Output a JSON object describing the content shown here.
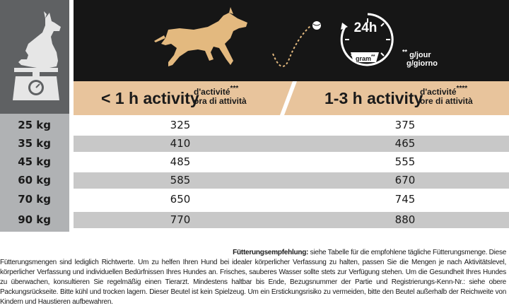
{
  "header": {
    "col1_main": "< 1 h activity",
    "col1_sub_line1": "d'activité",
    "col1_sub_stars": "***",
    "col1_sub_line2": "ora di attività",
    "col2_main": "1-3 h activity",
    "col2_sub_line1": "d'activité",
    "col2_sub_stars": "****",
    "col2_sub_line2": "ore di attività"
  },
  "clock": {
    "hours": "24h",
    "gram": "gram",
    "gram_stars": "**",
    "unit_stars": "**",
    "unit_fr": "g/jour",
    "unit_it": "g/giorno"
  },
  "rows": [
    {
      "weight": "25 kg",
      "v1": "325",
      "v2": "375"
    },
    {
      "weight": "35 kg",
      "v1": "410",
      "v2": "465"
    },
    {
      "weight": "45 kg",
      "v1": "485",
      "v2": "555"
    },
    {
      "weight": "60 kg",
      "v1": "585",
      "v2": "670"
    },
    {
      "weight": "70 kg",
      "v1": "650",
      "v2": "745"
    },
    {
      "weight": "90 kg",
      "v1": "770",
      "v2": "880"
    }
  ],
  "footer": {
    "lead": "Fütterungsempfehlung:",
    "line1": " siehe Tabelle für die empfohlene tägliche Fütterungsmenge. Diese",
    "text": "Fütterungsmengen sind lediglich Richtwerte. Um zu helfen Ihren Hund bei idealer körperlicher Verfassung zu halten, passen Sie die Mengen je nach Aktivitätslevel, körperlicher Verfassung und individuellen Bedürfnissen Ihres Hundes an. Frisches, sauberes Wasser sollte stets zur Verfügung stehen. Um die Gesundheit Ihres Hundes zu überwachen, konsultieren Sie regelmäßig einen Tierarzt. Mindestens haltbar bis Ende, Bezugsnummer der Partie und Registrierungs-Kenn-Nr.: siehe obere Packungsrückseite. Bitte kühl und trocken lagern. Dieser Beutel ist kein Spielzeug. Um ein Erstickungsrisiko zu vermeiden, bitte den Beutel außerhalb der Reichweite von Kindern und Haustieren aufbewahren."
  },
  "colors": {
    "dark_band": "#161616",
    "tan_band": "#e8c49c",
    "sidebar_gray": "#b0b2b4",
    "icon_panel": "#5f6163",
    "row_gray": "#c8c8c8",
    "dog_gold": "#e3b97f"
  }
}
